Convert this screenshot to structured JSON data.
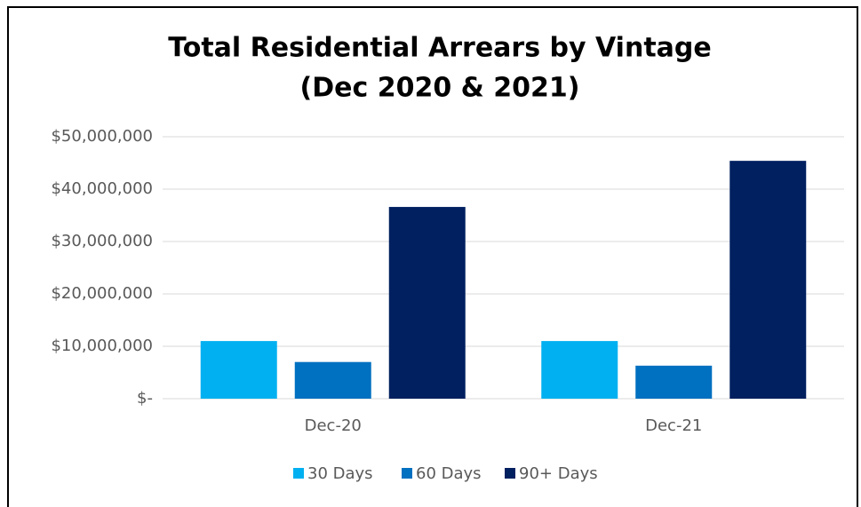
{
  "chart_data": {
    "type": "bar",
    "title": [
      "Total Residential Arrears by Vintage",
      "(Dec 2020 & 2021)"
    ],
    "categories": [
      "Dec-20",
      "Dec-21"
    ],
    "series": [
      {
        "name": "30 Days",
        "color": "#00b0f0",
        "values": [
          11000000,
          11000000
        ]
      },
      {
        "name": "60 Days",
        "color": "#0070c0",
        "values": [
          7000000,
          6300000
        ]
      },
      {
        "name": "90+ Days",
        "color": "#002060",
        "values": [
          36600000,
          45400000
        ]
      }
    ],
    "ylim": [
      0,
      50000000
    ],
    "yticks": [
      {
        "value": 0,
        "label": "$-"
      },
      {
        "value": 10000000,
        "label": "$10,000,000"
      },
      {
        "value": 20000000,
        "label": "$20,000,000"
      },
      {
        "value": 30000000,
        "label": "$30,000,000"
      },
      {
        "value": 40000000,
        "label": "$40,000,000"
      },
      {
        "value": 50000000,
        "label": "$50,000,000"
      }
    ],
    "grid": true,
    "legend": "bottom"
  }
}
